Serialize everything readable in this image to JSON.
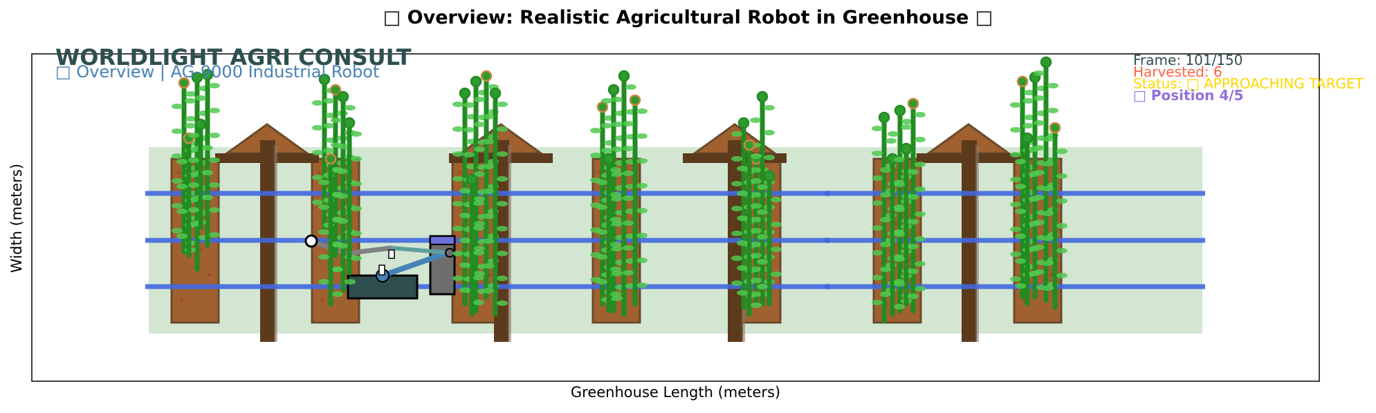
{
  "figure": {
    "title": "□ Overview: Realistic Agricultural Robot in Greenhouse □",
    "xlabel": "Greenhouse Length (meters)",
    "ylabel": "Width (meters)"
  },
  "overlay": {
    "brand": "WORLDLIGHT AGRI CONSULT",
    "subtitle": "□ Overview | AG-9000 Industrial Robot"
  },
  "status_panel": {
    "frame": "Frame: 101/150",
    "harvested": "Harvested: 6",
    "status": "Status: □ APPROACHING TARGET",
    "position": "□ Position 4/5"
  },
  "colors": {
    "frame_color": "#2f4f4f",
    "harvested_color": "#ff6347",
    "status_color": "#ffd700",
    "position_color": "#9370db",
    "rail_color": "#4169e1",
    "plant_color": "#228b22",
    "bed_color": "#8b4513",
    "floor_color": "#c8e0c8",
    "robot_body_color": "#2f4f4f",
    "robot_arm_color": "#4682b4"
  }
}
